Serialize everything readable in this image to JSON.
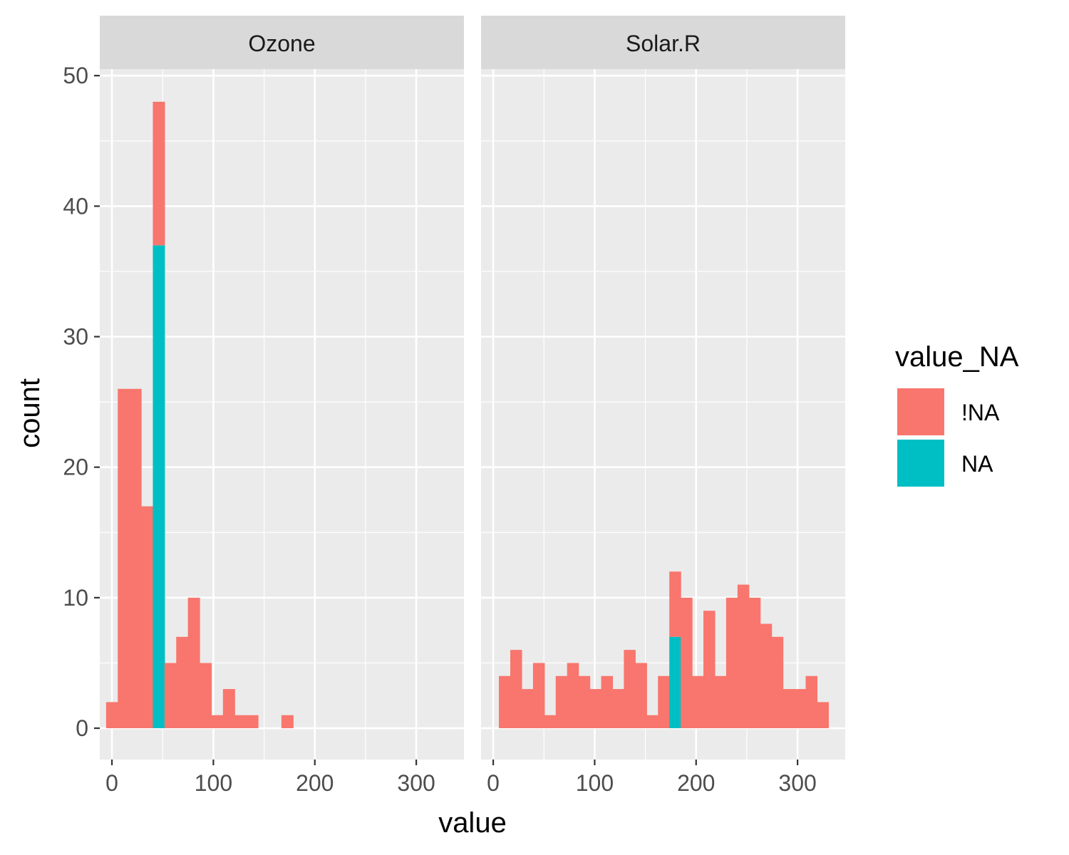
{
  "chart_data": {
    "type": "bar",
    "title": "",
    "xlabel": "value",
    "ylabel": "count",
    "xlim": [
      -12,
      347
    ],
    "ylim": [
      -2.4,
      50.5
    ],
    "x_ticks": [
      0,
      100,
      200,
      300
    ],
    "y_ticks": [
      0,
      10,
      20,
      30,
      40,
      50
    ],
    "grid": true,
    "stacked": true,
    "legend": {
      "title": "value_NA",
      "position": "right",
      "entries": [
        {
          "label": "!NA",
          "color": "#F8766D"
        },
        {
          "label": "NA",
          "color": "#00BFC4"
        }
      ]
    },
    "panels": [
      {
        "strip": "Ozone",
        "bin_width": 11.52,
        "bins": [
          {
            "x0": -5.76,
            "not_na": 2,
            "na": 0
          },
          {
            "x0": 5.76,
            "not_na": 26,
            "na": 0
          },
          {
            "x0": 17.28,
            "not_na": 26,
            "na": 0
          },
          {
            "x0": 28.8,
            "not_na": 17,
            "na": 0
          },
          {
            "x0": 40.32,
            "not_na": 11,
            "na": 37
          },
          {
            "x0": 51.84,
            "not_na": 5,
            "na": 0
          },
          {
            "x0": 63.36,
            "not_na": 7,
            "na": 0
          },
          {
            "x0": 74.88,
            "not_na": 10,
            "na": 0
          },
          {
            "x0": 86.4,
            "not_na": 5,
            "na": 0
          },
          {
            "x0": 97.92,
            "not_na": 1,
            "na": 0
          },
          {
            "x0": 109.44,
            "not_na": 3,
            "na": 0
          },
          {
            "x0": 120.96,
            "not_na": 1,
            "na": 0
          },
          {
            "x0": 132.48,
            "not_na": 1,
            "na": 0
          },
          {
            "x0": 144.0,
            "not_na": 0,
            "na": 0
          },
          {
            "x0": 155.52,
            "not_na": 0,
            "na": 0
          },
          {
            "x0": 167.04,
            "not_na": 1,
            "na": 0
          }
        ]
      },
      {
        "strip": "Solar.R",
        "bin_width": 11.2,
        "bins": [
          {
            "x0": 5.6,
            "not_na": 4,
            "na": 0
          },
          {
            "x0": 16.8,
            "not_na": 6,
            "na": 0
          },
          {
            "x0": 28.0,
            "not_na": 3,
            "na": 0
          },
          {
            "x0": 39.2,
            "not_na": 5,
            "na": 0
          },
          {
            "x0": 50.4,
            "not_na": 1,
            "na": 0
          },
          {
            "x0": 61.6,
            "not_na": 4,
            "na": 0
          },
          {
            "x0": 72.8,
            "not_na": 5,
            "na": 0
          },
          {
            "x0": 84.0,
            "not_na": 4,
            "na": 0
          },
          {
            "x0": 95.2,
            "not_na": 3,
            "na": 0
          },
          {
            "x0": 106.4,
            "not_na": 4,
            "na": 0
          },
          {
            "x0": 117.6,
            "not_na": 3,
            "na": 0
          },
          {
            "x0": 128.8,
            "not_na": 6,
            "na": 0
          },
          {
            "x0": 140.0,
            "not_na": 5,
            "na": 0
          },
          {
            "x0": 151.2,
            "not_na": 1,
            "na": 0
          },
          {
            "x0": 162.4,
            "not_na": 4,
            "na": 0
          },
          {
            "x0": 173.6,
            "not_na": 5,
            "na": 7
          },
          {
            "x0": 184.8,
            "not_na": 10,
            "na": 0
          },
          {
            "x0": 196.0,
            "not_na": 4,
            "na": 0
          },
          {
            "x0": 207.2,
            "not_na": 9,
            "na": 0
          },
          {
            "x0": 218.4,
            "not_na": 4,
            "na": 0
          },
          {
            "x0": 229.6,
            "not_na": 10,
            "na": 0
          },
          {
            "x0": 240.8,
            "not_na": 11,
            "na": 0
          },
          {
            "x0": 252.0,
            "not_na": 10,
            "na": 0
          },
          {
            "x0": 263.2,
            "not_na": 8,
            "na": 0
          },
          {
            "x0": 274.4,
            "not_na": 7,
            "na": 0
          },
          {
            "x0": 285.6,
            "not_na": 3,
            "na": 0
          },
          {
            "x0": 296.8,
            "not_na": 3,
            "na": 0
          },
          {
            "x0": 308.0,
            "not_na": 4,
            "na": 0
          },
          {
            "x0": 319.2,
            "not_na": 2,
            "na": 0
          }
        ]
      }
    ]
  },
  "colors": {
    "panel_bg": "#EBEBEB",
    "strip_bg": "#D9D9D9",
    "grid": "#FFFFFF",
    "tick": "#333333",
    "not_na": "#F8766D",
    "na": "#00BFC4"
  }
}
